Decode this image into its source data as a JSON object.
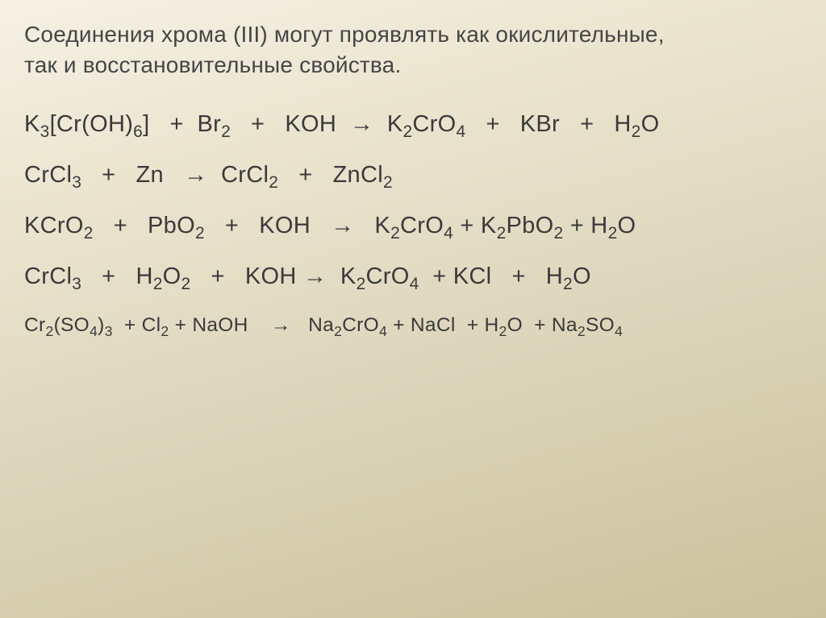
{
  "heading": {
    "line1": "Соединения хрома (III) могут проявлять как окислительные,",
    "line2": "так и восстановительные свойства."
  },
  "equations": {
    "eq1": {
      "parts": [
        "K",
        "3",
        "[Cr(OH)",
        "6",
        "]   +  Br",
        "2",
        "   +   KOH  →  K",
        "2",
        "CrO",
        "4",
        "   +   KBr   +   H",
        "2",
        "O"
      ],
      "subIndex": [
        1,
        3,
        5,
        7,
        9,
        11
      ]
    },
    "eq2": {
      "parts": [
        "CrCl",
        "3",
        "   +   Zn   →  CrCl",
        "2",
        "   +   ZnCl",
        "2"
      ],
      "subIndex": [
        1,
        3,
        5
      ]
    },
    "eq3": {
      "parts": [
        "KCrO",
        "2",
        "   +   PbO",
        "2",
        "   +   KOH   →   K",
        "2",
        "CrO",
        "4",
        " + K",
        "2",
        "PbO",
        "2",
        " + H",
        "2",
        "O"
      ],
      "subIndex": [
        1,
        3,
        5,
        7,
        9,
        11,
        13
      ]
    },
    "eq4": {
      "parts": [
        "CrCl",
        "3",
        "   +   H",
        "2",
        "O",
        "2",
        "   +   KOH →  K",
        "2",
        "CrO",
        "4",
        "  + KCl   +   H",
        "2",
        "O"
      ],
      "subIndex": [
        1,
        3,
        5,
        7,
        9,
        11
      ]
    },
    "eq5": {
      "parts": [
        "Cr",
        "2",
        "(SO",
        "4",
        ")",
        "3",
        "  + Cl",
        "2",
        " + NaOH    →   Na",
        "2",
        "CrO",
        "4",
        " + NaCl  + H",
        "2",
        "O  + Na",
        "2",
        "SO",
        "4"
      ],
      "subIndex": [
        1,
        3,
        5,
        7,
        9,
        11,
        13,
        15,
        17
      ]
    }
  },
  "styling": {
    "background_gradient": [
      "#f5f1e4",
      "#ebe5d0",
      "#e0d9c0",
      "#d6cdae",
      "#cbc19c"
    ],
    "heading_fontsize": 28,
    "equation_fontsize": 29,
    "last_equation_fontsize": 24.5,
    "text_color": "#3a3a3a",
    "heading_color": "#454545",
    "font_family": "Arial"
  }
}
